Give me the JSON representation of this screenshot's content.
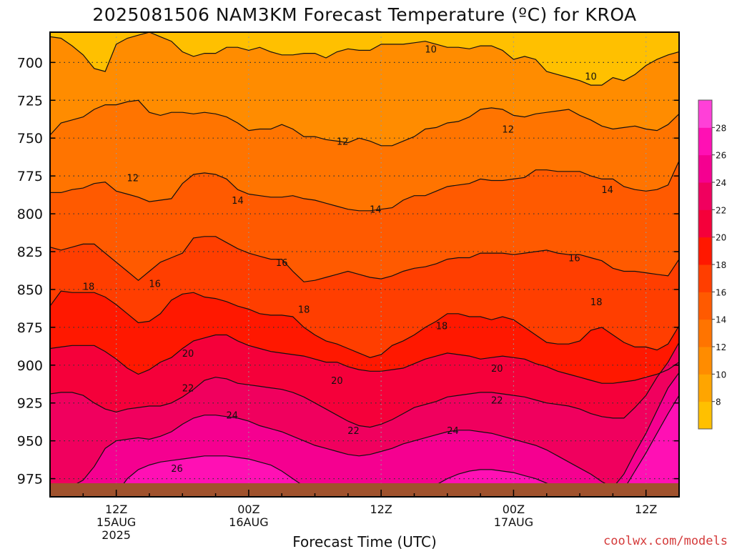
{
  "chart_data": {
    "type": "heatmap",
    "title": "2025081506 NAM3KM Forecast Temperature (ºC) for KROA",
    "xlabel": "Forecast Time (UTC)",
    "ylabel": "",
    "y_scale": "pressure (inverted, hPa)",
    "ylim": [
      987,
      680
    ],
    "yticks": [
      "700",
      "725",
      "750",
      "775",
      "800",
      "825",
      "850",
      "875",
      "900",
      "925",
      "950",
      "975"
    ],
    "x_hours": [
      0,
      57
    ],
    "xticks": [
      {
        "hour": 6,
        "lines": [
          "12Z",
          "15AUG",
          "2025"
        ]
      },
      {
        "hour": 18,
        "lines": [
          "00Z",
          "16AUG"
        ]
      },
      {
        "hour": 30,
        "lines": [
          "12Z"
        ]
      },
      {
        "hour": 42,
        "lines": [
          "00Z",
          "17AUG"
        ]
      },
      {
        "hour": 54,
        "lines": [
          "12Z"
        ]
      }
    ],
    "grid": true,
    "colorbar": {
      "labels": [
        "8",
        "10",
        "12",
        "14",
        "16",
        "18",
        "20",
        "22",
        "24",
        "26",
        "28"
      ],
      "levels": [
        6,
        8,
        10,
        12,
        14,
        16,
        18,
        20,
        22,
        24,
        26,
        28,
        30
      ],
      "colors": [
        "#ffc000",
        "#ffa500",
        "#ff8c00",
        "#ff7400",
        "#ff5a00",
        "#ff3e00",
        "#ff1800",
        "#f5003a",
        "#f0005e",
        "#f50090",
        "#ff10b4",
        "#ff40d8"
      ]
    },
    "contours": [
      {
        "value": 10,
        "p": [
          683,
          684,
          689,
          695,
          704,
          706,
          688,
          684,
          682,
          680,
          683,
          686,
          693,
          696,
          694,
          694,
          690,
          690,
          692,
          690,
          693,
          695,
          695,
          694,
          694,
          697,
          693,
          691,
          692,
          692,
          688,
          688,
          688,
          687,
          686,
          688,
          690,
          690,
          691,
          689,
          689,
          692,
          698,
          696,
          698,
          706,
          708,
          710,
          712,
          715,
          715,
          710,
          712,
          708,
          702,
          698,
          695,
          693
        ]
      },
      {
        "value": 12,
        "p": [
          748,
          740,
          738,
          736,
          731,
          728,
          728,
          726,
          725,
          733,
          735,
          733,
          733,
          734,
          733,
          734,
          736,
          740,
          745,
          744,
          744,
          741,
          744,
          749,
          749,
          751,
          752,
          753,
          750,
          752,
          755,
          755,
          752,
          749,
          744,
          743,
          740,
          739,
          736,
          731,
          730,
          731,
          735,
          736,
          734,
          733,
          732,
          731,
          735,
          738,
          742,
          744,
          743,
          742,
          744,
          745,
          741,
          734
        ]
      },
      {
        "value": 14,
        "p": [
          786,
          786,
          784,
          783,
          780,
          779,
          785,
          787,
          789,
          792,
          791,
          790,
          780,
          774,
          773,
          774,
          777,
          784,
          787,
          788,
          789,
          789,
          788,
          790,
          791,
          793,
          795,
          797,
          798,
          798,
          797,
          796,
          791,
          788,
          788,
          785,
          782,
          781,
          780,
          777,
          778,
          778,
          777,
          776,
          771,
          771,
          772,
          772,
          772,
          775,
          777,
          777,
          782,
          784,
          785,
          784,
          781,
          765
        ]
      },
      {
        "value": 16,
        "p": [
          822,
          824,
          822,
          820,
          820,
          826,
          832,
          838,
          844,
          838,
          832,
          829,
          826,
          816,
          815,
          815,
          819,
          823,
          826,
          828,
          830,
          830,
          838,
          845,
          844,
          842,
          840,
          838,
          840,
          842,
          843,
          841,
          838,
          836,
          835,
          833,
          830,
          829,
          829,
          826,
          826,
          826,
          827,
          826,
          825,
          824,
          826,
          827,
          827,
          829,
          831,
          836,
          838,
          838,
          839,
          840,
          841,
          830
        ]
      },
      {
        "value": 18,
        "p": [
          861,
          851,
          852,
          852,
          852,
          855,
          860,
          866,
          872,
          871,
          866,
          857,
          853,
          852,
          855,
          856,
          858,
          861,
          863,
          866,
          867,
          867,
          868,
          875,
          880,
          884,
          886,
          889,
          892,
          895,
          893,
          887,
          884,
          880,
          875,
          871,
          866,
          866,
          868,
          868,
          870,
          868,
          870,
          875,
          880,
          885,
          886,
          886,
          884,
          877,
          875,
          880,
          885,
          888,
          888,
          890,
          886,
          874
        ]
      },
      {
        "value": 20,
        "p": [
          889,
          888,
          887,
          887,
          887,
          891,
          896,
          902,
          906,
          903,
          898,
          895,
          889,
          884,
          882,
          880,
          880,
          884,
          887,
          889,
          891,
          892,
          893,
          894,
          896,
          898,
          898,
          901,
          903,
          904,
          904,
          903,
          902,
          899,
          896,
          894,
          892,
          893,
          894,
          896,
          895,
          894,
          895,
          896,
          899,
          901,
          904,
          906,
          908,
          910,
          912,
          912,
          911,
          910,
          908,
          906,
          903,
          898
        ]
      },
      {
        "value": 22,
        "p": [
          919,
          918,
          918,
          920,
          925,
          929,
          931,
          929,
          928,
          927,
          927,
          925,
          921,
          916,
          910,
          908,
          909,
          912,
          913,
          914,
          915,
          916,
          918,
          921,
          925,
          929,
          933,
          937,
          940,
          941,
          939,
          936,
          932,
          928,
          926,
          924,
          921,
          920,
          919,
          918,
          918,
          919,
          920,
          921,
          923,
          925,
          926,
          927,
          929,
          932,
          934,
          935,
          935,
          928,
          920,
          908,
          898,
          885
        ]
      },
      {
        "value": 24,
        "p": [
          987,
          984,
          980,
          976,
          967,
          955,
          950,
          949,
          948,
          949,
          947,
          944,
          939,
          935,
          933,
          933,
          934,
          935,
          937,
          940,
          942,
          944,
          947,
          950,
          953,
          955,
          957,
          959,
          960,
          959,
          957,
          955,
          952,
          950,
          948,
          946,
          944,
          943,
          943,
          944,
          945,
          947,
          949,
          951,
          953,
          956,
          960,
          964,
          968,
          972,
          977,
          981,
          972,
          958,
          945,
          930,
          915,
          905
        ]
      },
      {
        "value": 26,
        "p": [
          987,
          987,
          987,
          987,
          987,
          987,
          985,
          975,
          969,
          966,
          964,
          963,
          962,
          961,
          960,
          960,
          960,
          961,
          962,
          964,
          966,
          970,
          975,
          980,
          983,
          986,
          987,
          987,
          987,
          987,
          987,
          987,
          987,
          986,
          983,
          979,
          975,
          972,
          970,
          969,
          969,
          970,
          971,
          973,
          975,
          978,
          981,
          984,
          987,
          987,
          987,
          987,
          982,
          970,
          958,
          945,
          932,
          920
        ]
      }
    ],
    "contour_labels": [
      {
        "value": 10,
        "hour": 34.5,
        "p": 691
      },
      {
        "value": 10,
        "hour": 49.0,
        "p": 709
      },
      {
        "value": 12,
        "hour": 7.5,
        "p": 776
      },
      {
        "value": 12,
        "hour": 26.5,
        "p": 752
      },
      {
        "value": 12,
        "hour": 41.5,
        "p": 744
      },
      {
        "value": 14,
        "hour": 17.0,
        "p": 791
      },
      {
        "value": 14,
        "hour": 29.5,
        "p": 797
      },
      {
        "value": 14,
        "hour": 50.5,
        "p": 784
      },
      {
        "value": 16,
        "hour": 9.5,
        "p": 846
      },
      {
        "value": 16,
        "hour": 21.0,
        "p": 832
      },
      {
        "value": 16,
        "hour": 47.5,
        "p": 829
      },
      {
        "value": 18,
        "hour": 3.5,
        "p": 848
      },
      {
        "value": 18,
        "hour": 23.0,
        "p": 863
      },
      {
        "value": 18,
        "hour": 35.5,
        "p": 874
      },
      {
        "value": 18,
        "hour": 49.5,
        "p": 858
      },
      {
        "value": 20,
        "hour": 12.5,
        "p": 892
      },
      {
        "value": 20,
        "hour": 26.0,
        "p": 910
      },
      {
        "value": 20,
        "hour": 40.5,
        "p": 902
      },
      {
        "value": 22,
        "hour": 12.5,
        "p": 915
      },
      {
        "value": 22,
        "hour": 27.5,
        "p": 943
      },
      {
        "value": 22,
        "hour": 40.5,
        "p": 923
      },
      {
        "value": 24,
        "hour": 16.5,
        "p": 933
      },
      {
        "value": 24,
        "hour": 36.5,
        "p": 943
      },
      {
        "value": 26,
        "hour": 11.5,
        "p": 968
      }
    ],
    "terrain_color": "#a0522d"
  },
  "credit": "coolwx.com/models"
}
